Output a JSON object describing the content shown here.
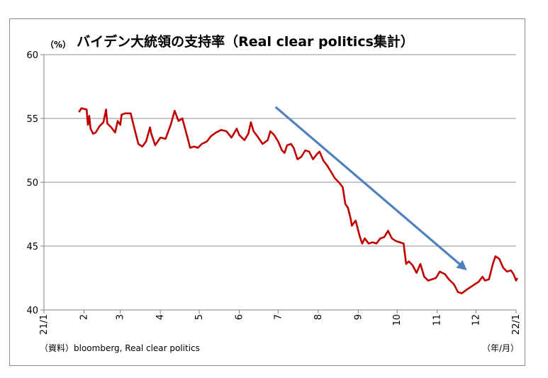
{
  "chart_data": {
    "type": "line",
    "title": "バイデン大統領の支持率（Real clear politics集計）",
    "ylabel": "（%）",
    "xlabel": "（年/月）",
    "source": "（資料）bloomberg, Real clear politics",
    "ylim": [
      40,
      60
    ],
    "yticks": [
      40,
      45,
      50,
      55,
      60
    ],
    "x_ticks": [
      {
        "label": "21/1",
        "date": "2021-01-01"
      },
      {
        "label": "2",
        "date": "2021-02-01"
      },
      {
        "label": "3",
        "date": "2021-03-01"
      },
      {
        "label": "4",
        "date": "2021-04-01"
      },
      {
        "label": "5",
        "date": "2021-05-01"
      },
      {
        "label": "6",
        "date": "2021-06-01"
      },
      {
        "label": "7",
        "date": "2021-07-01"
      },
      {
        "label": "8",
        "date": "2021-08-01"
      },
      {
        "label": "9",
        "date": "2021-09-01"
      },
      {
        "label": "10",
        "date": "2021-10-01"
      },
      {
        "label": "11",
        "date": "2021-11-01"
      },
      {
        "label": "12",
        "date": "2021-12-01"
      },
      {
        "label": "22/1",
        "date": "2022-01-01"
      }
    ],
    "grid": true,
    "legend": "none",
    "series": [
      {
        "color": "#c00000",
        "points": [
          [
            "2021-01-28",
            55.5
          ],
          [
            "2021-01-30",
            55.8
          ],
          [
            "2021-02-03",
            55.7
          ],
          [
            "2021-02-04",
            54.5
          ],
          [
            "2021-02-05",
            55.2
          ],
          [
            "2021-02-06",
            54.2
          ],
          [
            "2021-02-08",
            53.8
          ],
          [
            "2021-02-10",
            53.9
          ],
          [
            "2021-02-13",
            54.4
          ],
          [
            "2021-02-16",
            54.7
          ],
          [
            "2021-02-18",
            55.7
          ],
          [
            "2021-02-19",
            54.6
          ],
          [
            "2021-02-22",
            54.3
          ],
          [
            "2021-02-25",
            53.9
          ],
          [
            "2021-02-27",
            54.8
          ],
          [
            "2021-03-01",
            54.5
          ],
          [
            "2021-03-02",
            55.3
          ],
          [
            "2021-03-05",
            55.4
          ],
          [
            "2021-03-09",
            55.4
          ],
          [
            "2021-03-12",
            54.2
          ],
          [
            "2021-03-15",
            53.0
          ],
          [
            "2021-03-18",
            52.8
          ],
          [
            "2021-03-21",
            53.2
          ],
          [
            "2021-03-24",
            54.3
          ],
          [
            "2021-03-25",
            53.8
          ],
          [
            "2021-03-28",
            52.9
          ],
          [
            "2021-04-01",
            53.5
          ],
          [
            "2021-04-05",
            53.4
          ],
          [
            "2021-04-09",
            54.5
          ],
          [
            "2021-04-12",
            55.6
          ],
          [
            "2021-04-15",
            54.8
          ],
          [
            "2021-04-18",
            55.0
          ],
          [
            "2021-04-22",
            53.5
          ],
          [
            "2021-04-24",
            52.7
          ],
          [
            "2021-04-27",
            52.8
          ],
          [
            "2021-04-30",
            52.7
          ],
          [
            "2021-05-03",
            53.0
          ],
          [
            "2021-05-07",
            53.2
          ],
          [
            "2021-05-10",
            53.6
          ],
          [
            "2021-05-14",
            53.9
          ],
          [
            "2021-05-18",
            54.1
          ],
          [
            "2021-05-22",
            54.0
          ],
          [
            "2021-05-26",
            53.5
          ],
          [
            "2021-05-30",
            54.2
          ],
          [
            "2021-06-01",
            53.7
          ],
          [
            "2021-06-05",
            53.3
          ],
          [
            "2021-06-08",
            53.8
          ],
          [
            "2021-06-10",
            54.7
          ],
          [
            "2021-06-12",
            54.0
          ],
          [
            "2021-06-15",
            53.6
          ],
          [
            "2021-06-19",
            53.0
          ],
          [
            "2021-06-23",
            53.3
          ],
          [
            "2021-06-25",
            54.0
          ],
          [
            "2021-06-28",
            53.7
          ],
          [
            "2021-07-01",
            53.2
          ],
          [
            "2021-07-04",
            52.5
          ],
          [
            "2021-07-06",
            52.3
          ],
          [
            "2021-07-08",
            52.9
          ],
          [
            "2021-07-11",
            53.0
          ],
          [
            "2021-07-13",
            52.7
          ],
          [
            "2021-07-16",
            51.8
          ],
          [
            "2021-07-19",
            52.0
          ],
          [
            "2021-07-22",
            52.5
          ],
          [
            "2021-07-25",
            52.4
          ],
          [
            "2021-07-28",
            51.8
          ],
          [
            "2021-07-31",
            52.2
          ],
          [
            "2021-08-02",
            52.4
          ],
          [
            "2021-08-05",
            51.7
          ],
          [
            "2021-08-08",
            51.3
          ],
          [
            "2021-08-11",
            50.8
          ],
          [
            "2021-08-14",
            50.3
          ],
          [
            "2021-08-17",
            50.0
          ],
          [
            "2021-08-20",
            49.6
          ],
          [
            "2021-08-22",
            48.3
          ],
          [
            "2021-08-24",
            48.0
          ],
          [
            "2021-08-26",
            47.2
          ],
          [
            "2021-08-27",
            46.6
          ],
          [
            "2021-08-30",
            47.0
          ],
          [
            "2021-09-02",
            45.8
          ],
          [
            "2021-09-04",
            45.2
          ],
          [
            "2021-09-06",
            45.6
          ],
          [
            "2021-09-09",
            45.2
          ],
          [
            "2021-09-12",
            45.3
          ],
          [
            "2021-09-15",
            45.2
          ],
          [
            "2021-09-18",
            45.6
          ],
          [
            "2021-09-21",
            45.7
          ],
          [
            "2021-09-24",
            46.2
          ],
          [
            "2021-09-27",
            45.6
          ],
          [
            "2021-09-30",
            45.4
          ],
          [
            "2021-10-03",
            45.3
          ],
          [
            "2021-10-06",
            45.2
          ],
          [
            "2021-10-08",
            43.6
          ],
          [
            "2021-10-10",
            43.8
          ],
          [
            "2021-10-13",
            43.5
          ],
          [
            "2021-10-16",
            42.9
          ],
          [
            "2021-10-19",
            43.6
          ],
          [
            "2021-10-22",
            42.6
          ],
          [
            "2021-10-25",
            42.3
          ],
          [
            "2021-10-28",
            42.4
          ],
          [
            "2021-10-31",
            42.5
          ],
          [
            "2021-11-03",
            43.0
          ],
          [
            "2021-11-07",
            42.8
          ],
          [
            "2021-11-10",
            42.4
          ],
          [
            "2021-11-14",
            42.0
          ],
          [
            "2021-11-17",
            41.4
          ],
          [
            "2021-11-20",
            41.3
          ],
          [
            "2021-11-24",
            41.6
          ],
          [
            "2021-11-27",
            41.8
          ],
          [
            "2021-11-30",
            42.0
          ],
          [
            "2021-12-03",
            42.2
          ],
          [
            "2021-12-06",
            42.6
          ],
          [
            "2021-12-08",
            42.3
          ],
          [
            "2021-12-11",
            42.4
          ],
          [
            "2021-12-14",
            43.6
          ],
          [
            "2021-12-16",
            44.2
          ],
          [
            "2021-12-19",
            44.0
          ],
          [
            "2021-12-22",
            43.3
          ],
          [
            "2021-12-25",
            43.0
          ],
          [
            "2021-12-28",
            43.1
          ],
          [
            "2021-12-30",
            42.8
          ],
          [
            "2022-01-01",
            42.3
          ],
          [
            "2022-01-02",
            42.5
          ]
        ]
      }
    ],
    "annotations": [
      {
        "type": "arrow",
        "color": "#4f81bd",
        "from": [
          "2021-06-29",
          55.9
        ],
        "to": [
          "2021-11-24",
          43.1
        ]
      }
    ]
  }
}
